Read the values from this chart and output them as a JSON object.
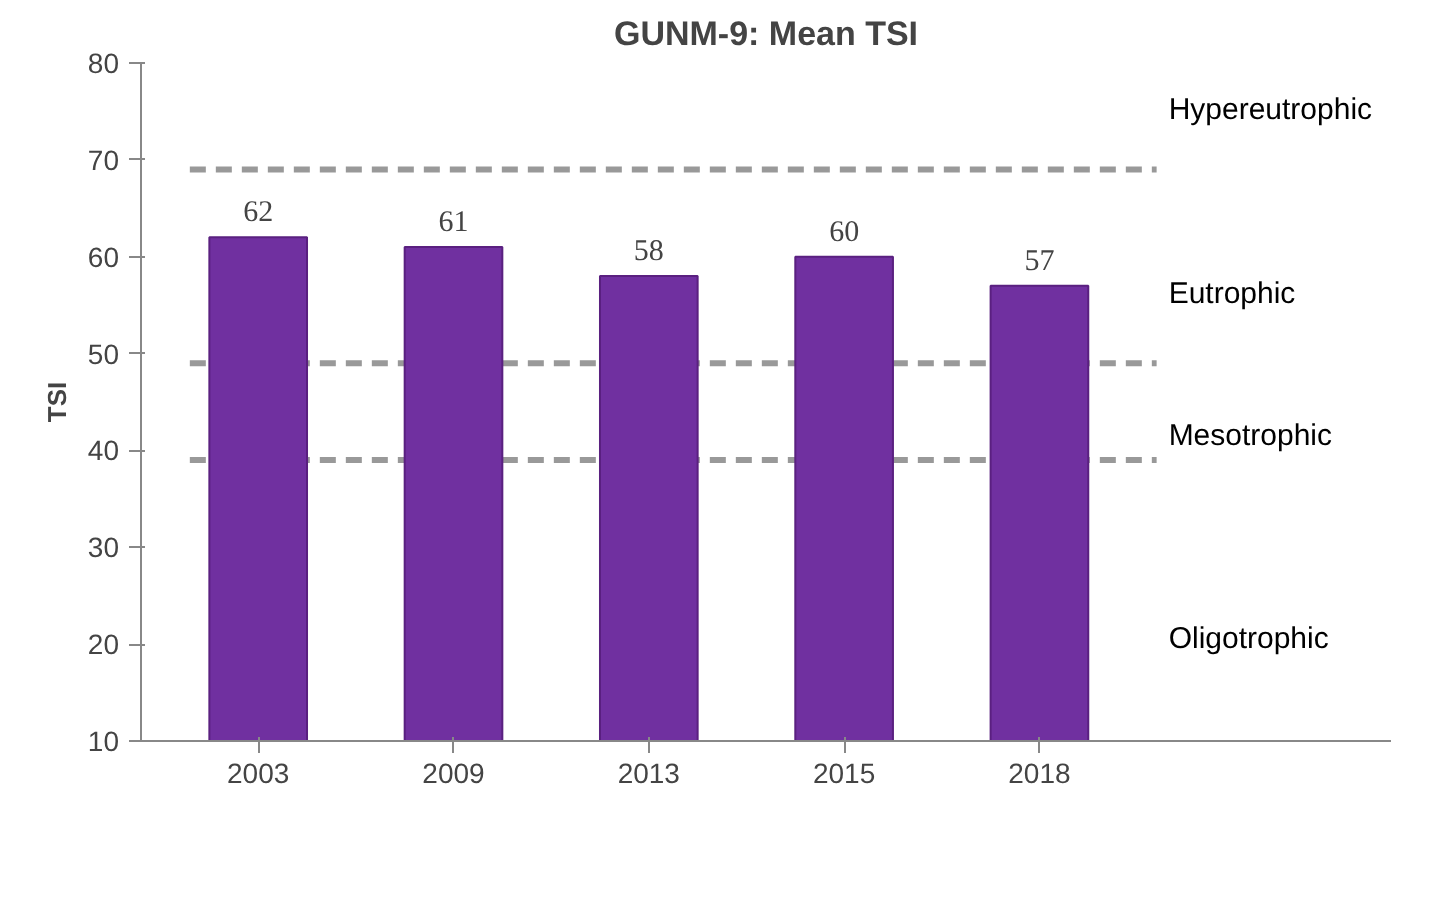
{
  "chart_data": {
    "type": "bar",
    "title": "GUNM-9: Mean TSI",
    "ylabel": "TSI",
    "categories": [
      "2003",
      "2009",
      "2013",
      "2015",
      "2018"
    ],
    "values": [
      62,
      61,
      58,
      60,
      57
    ],
    "color": "#7030a0",
    "data_labels": true,
    "ylim": [
      10,
      80
    ],
    "yticks": [
      10,
      20,
      30,
      40,
      50,
      60,
      70,
      80
    ],
    "grid": false,
    "ref_lines": [
      {
        "axis": "y",
        "value": 69,
        "color": "#999999",
        "line_style": "dashed"
      },
      {
        "axis": "y",
        "value": 49,
        "color": "#999999",
        "line_style": "dashed"
      },
      {
        "axis": "y",
        "value": 39,
        "color": "#999999",
        "line_style": "dashed"
      }
    ],
    "annotations": [
      "Hypereutrophic",
      "Eutrophic",
      "Mesotrophic",
      "Oligotrophic"
    ]
  }
}
